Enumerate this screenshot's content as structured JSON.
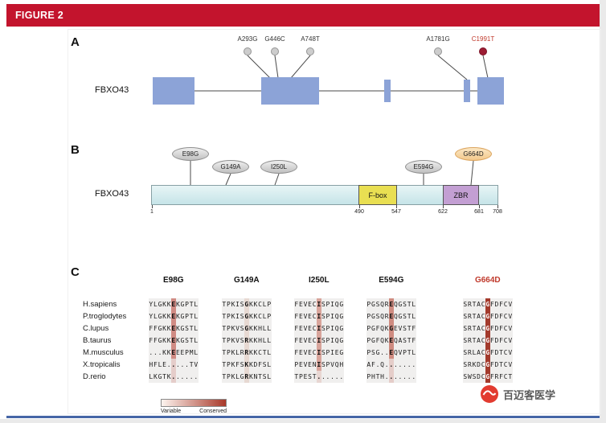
{
  "page": {
    "header": "FIGURE 2",
    "watermark_text": "百迈客医学"
  },
  "colors": {
    "header_red": "#c3142d",
    "pathogenic_red": "#c0392b",
    "exon_blue": "#8ca3d7",
    "fbox_yellow": "#e9df52",
    "zbr_purple": "#c39fd3",
    "conserved_dark_red": "#a33a2c"
  },
  "panelA": {
    "label": "A",
    "gene": "FBXO43",
    "mutations": [
      {
        "name": "A293G",
        "red": false
      },
      {
        "name": "G446C",
        "red": false
      },
      {
        "name": "A748T",
        "red": false
      },
      {
        "name": "A1781G",
        "red": false
      },
      {
        "name": "C1991T",
        "red": true
      }
    ]
  },
  "panelB": {
    "label": "B",
    "protein": "FBXO43",
    "length": 708,
    "mutations": [
      {
        "name": "E98G",
        "highlight": false
      },
      {
        "name": "G149A",
        "highlight": false
      },
      {
        "name": "I250L",
        "highlight": false
      },
      {
        "name": "E594G",
        "highlight": false
      },
      {
        "name": "G664D",
        "highlight": true
      }
    ],
    "domains": [
      {
        "name": "F-box",
        "start": 490,
        "end": 547
      },
      {
        "name": "ZBR",
        "start": 622,
        "end": 681
      }
    ],
    "ticks": [
      "1",
      "490",
      "547",
      "622",
      "681",
      "708"
    ]
  },
  "panelC": {
    "label": "C",
    "mut_index": 5,
    "columns": [
      {
        "name": "E98G",
        "red": false,
        "stripe": "#d08b84",
        "ink": "#111111"
      },
      {
        "name": "G149A",
        "red": false,
        "stripe": "#e7d9d2",
        "ink": "#111111"
      },
      {
        "name": "I250L",
        "red": false,
        "stripe": "#d8a49b",
        "ink": "#111111"
      },
      {
        "name": "E594G",
        "red": false,
        "stripe": "#cf8b80",
        "ink": "#111111"
      },
      {
        "name": "G664D",
        "red": true,
        "stripe": "#a33a2c",
        "ink": "#ffffff"
      }
    ],
    "rows": [
      {
        "species": "H.sapiens",
        "seqs": [
          "YLGKKEKGPTL",
          "TPKISGKKCLP",
          "FEVECISPIQG",
          "PGSQREQGSTL",
          "SRTACGFDFCV"
        ]
      },
      {
        "species": "P.troglodytes",
        "seqs": [
          "YLGKKEKGPTL",
          "TPKISGKKCLP",
          "FEVECISPIQG",
          "PGSQREQGSTL",
          "SRTACGFDFCV"
        ]
      },
      {
        "species": "C.lupus",
        "seqs": [
          "FFGKKEKGSTL",
          "TPKVSGKKHLL",
          "FEVECISPIQG",
          "PGFQKGEVSTF",
          "SRTACGFDFCV"
        ]
      },
      {
        "species": "B.taurus",
        "seqs": [
          "FFGKKEKGSTL",
          "TPKVSRKKHLL",
          "FEVECISPIQG",
          "PGFQKEQASTF",
          "SRTACGFDFCV"
        ]
      },
      {
        "species": "M.musculus",
        "seqs": [
          "...KKEEEPML",
          "TPKLRRKKCTL",
          "FEVECISPIEG",
          "PSG..EQVPTL",
          "SRLACGFDTCV"
        ]
      },
      {
        "species": "X.tropicalis",
        "seqs": [
          "HFLE.....TV",
          "TPKFSKKDFSL",
          "PEVENISPVQH",
          "AF.Q.......",
          "SRKDCGFDTCV"
        ]
      },
      {
        "species": "D.rerio",
        "seqs": [
          "LKGTK......",
          "TPKLGRKNTSL",
          "TPEST......",
          "PHTH.......",
          "SWSDCGFRFCT"
        ]
      }
    ],
    "legend": {
      "left": "Variable",
      "right": "Conserved"
    }
  }
}
